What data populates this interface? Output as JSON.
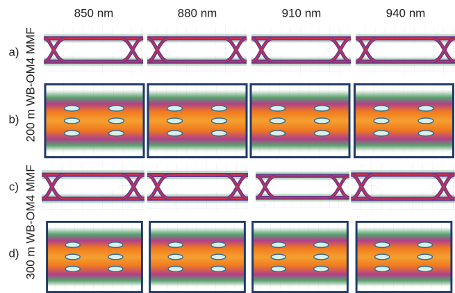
{
  "columns": [
    "850 nm",
    "880 nm",
    "910 nm",
    "940 nm"
  ],
  "rows": [
    "a)",
    "b)",
    "c)",
    "d)"
  ],
  "fiber_labels": [
    "200 m WB-OM4 MMF",
    "300 m WB-OM4 MMF"
  ]
}
